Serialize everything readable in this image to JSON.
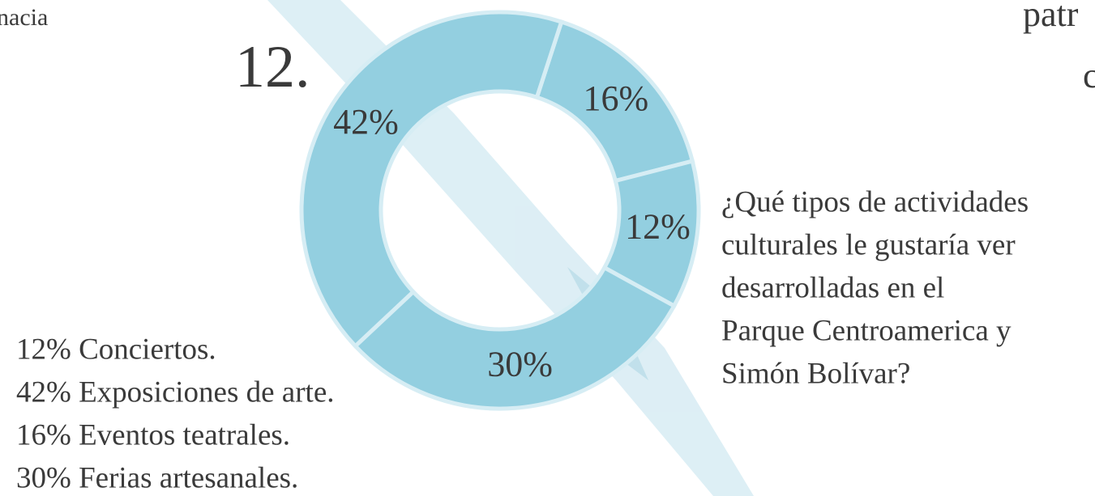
{
  "chart_data": {
    "type": "donut",
    "title": "12.",
    "values": [
      16,
      12,
      30,
      42
    ],
    "value_labels": [
      "16%",
      "12%",
      "30%",
      "42%"
    ],
    "color": "#93cfe0"
  },
  "question": [
    "¿Qué tipos de actividades",
    "culturales le gustaría ver",
    "desarrolladas en el",
    "Parque Centroamerica y",
    "Simón Bolívar?"
  ],
  "legend_lines": [
    "12% Conciertos.",
    "42% Exposiciones de arte.",
    "16% Eventos teatrales.",
    "30% Ferias artesanales."
  ],
  "fragments": {
    "left": "nacia",
    "right_top": "patr",
    "right_second": "c"
  }
}
